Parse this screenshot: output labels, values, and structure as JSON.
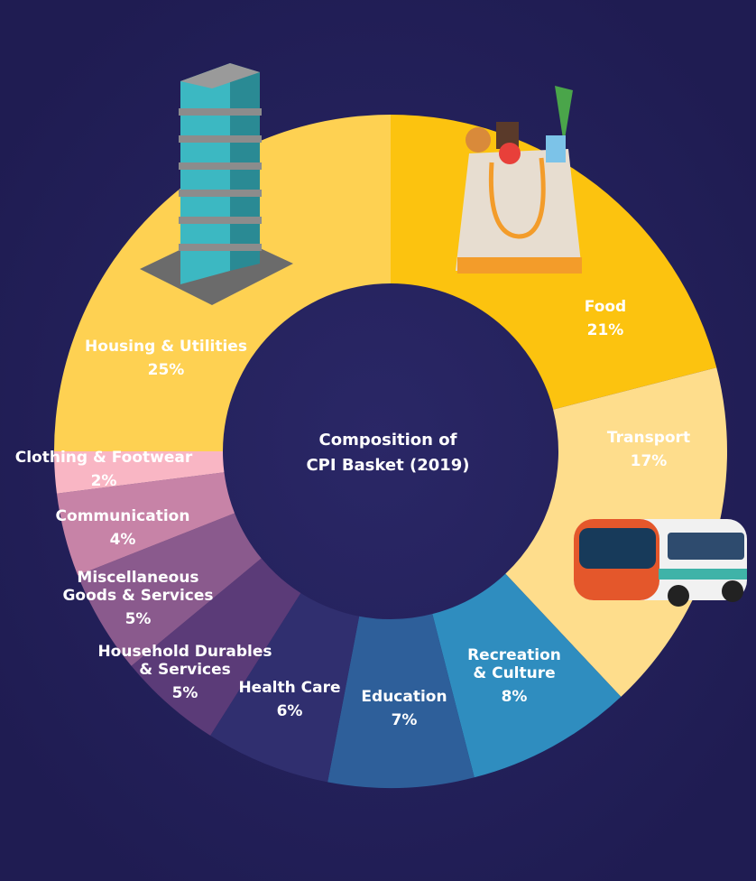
{
  "chart_data": {
    "type": "donut",
    "title": "Composition of CPI Basket (2019)",
    "categories": [
      "Food",
      "Transport",
      "Recreation & Culture",
      "Education",
      "Health Care",
      "Household Durables & Services",
      "Miscellaneous Goods & Services",
      "Communication",
      "Clothing & Footwear",
      "Housing & Utilities"
    ],
    "values": [
      21,
      17,
      8,
      7,
      6,
      5,
      5,
      4,
      2,
      25
    ],
    "value_labels": [
      "21%",
      "17%",
      "8%",
      "7%",
      "6%",
      "5%",
      "5%",
      "4%",
      "2%",
      "25%"
    ],
    "colors": [
      "#fcc30f",
      "#fedd8c",
      "#2f8dbf",
      "#2e5f9a",
      "#302f6f",
      "#5b3b78",
      "#8a5a8d",
      "#c783a7",
      "#f9b6c4",
      "#fed152"
    ]
  }
}
